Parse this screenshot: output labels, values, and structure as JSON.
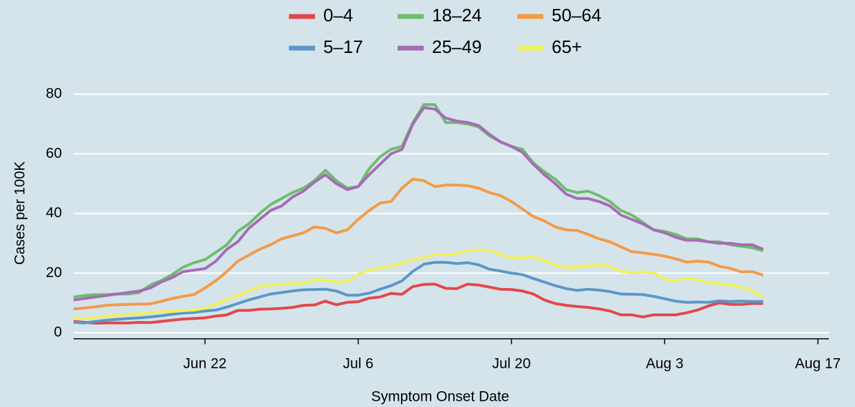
{
  "chart_data": {
    "type": "line",
    "x_label": "Symptom Onset Date",
    "y_label": "Cases per 100K",
    "legend": "top",
    "grid": true,
    "x": [
      "Jun 10",
      "Jun 11",
      "Jun 12",
      "Jun 13",
      "Jun 14",
      "Jun 15",
      "Jun 16",
      "Jun 17",
      "Jun 18",
      "Jun 19",
      "Jun 20",
      "Jun 21",
      "Jun 22",
      "Jun 23",
      "Jun 24",
      "Jun 25",
      "Jun 26",
      "Jun 27",
      "Jun 28",
      "Jun 29",
      "Jun 30",
      "Jul 1",
      "Jul 2",
      "Jul 3",
      "Jul 4",
      "Jul 5",
      "Jul 6",
      "Jul 7",
      "Jul 8",
      "Jul 9",
      "Jul 10",
      "Jul 11",
      "Jul 12",
      "Jul 13",
      "Jul 14",
      "Jul 15",
      "Jul 16",
      "Jul 17",
      "Jul 18",
      "Jul 19",
      "Jul 20",
      "Jul 21",
      "Jul 22",
      "Jul 23",
      "Jul 24",
      "Jul 25",
      "Jul 26",
      "Jul 27",
      "Jul 28",
      "Jul 29",
      "Jul 30",
      "Jul 31",
      "Aug 1",
      "Aug 2",
      "Aug 3",
      "Aug 4",
      "Aug 5",
      "Aug 6",
      "Aug 7",
      "Aug 8",
      "Aug 9",
      "Aug 10",
      "Aug 11",
      "Aug 12"
    ],
    "xlim": [
      "Jun 10",
      "Aug 18"
    ],
    "xticks": [
      "Jun 22",
      "Jul 6",
      "Jul 20",
      "Aug 3",
      "Aug 17"
    ],
    "ylim": [
      -2,
      82
    ],
    "yticks": [
      0,
      20,
      40,
      60,
      80
    ],
    "series": [
      {
        "name": "0–4",
        "color": "#e2474c",
        "values": [
          3.8,
          3.5,
          3.2,
          3.3,
          3.3,
          3.3,
          3.5,
          3.4,
          3.8,
          4.2,
          4.6,
          4.8,
          5,
          5.6,
          6,
          7.5,
          7.5,
          7.9,
          8,
          8.2,
          8.5,
          9.2,
          9.3,
          10.6,
          9.4,
          10.2,
          10.4,
          11.6,
          12,
          13.2,
          12.9,
          15.5,
          16.2,
          16.3,
          14.9,
          14.8,
          16.3,
          16,
          15.3,
          14.6,
          14.5,
          14,
          13,
          11,
          9.8,
          9.2,
          8.8,
          8.5,
          8,
          7.3,
          6,
          6,
          5.3,
          6,
          6,
          6,
          6.7,
          7.6,
          9,
          10,
          9.5,
          9.5,
          9.8,
          9.8
        ]
      },
      {
        "name": "5–17",
        "color": "#5b97c8",
        "values": [
          3.5,
          3.3,
          3.8,
          4.2,
          4.5,
          4.8,
          5,
          5.3,
          5.7,
          6.2,
          6.6,
          6.8,
          7.3,
          7.6,
          8.6,
          9.8,
          11,
          12,
          13,
          13.5,
          14,
          14.4,
          14.5,
          14.6,
          14,
          12.6,
          12.6,
          13.3,
          14.6,
          15.8,
          17.4,
          20.6,
          23,
          23.6,
          23.6,
          23.2,
          23.5,
          22.8,
          21.3,
          20.7,
          20,
          19.5,
          18.2,
          17,
          15.8,
          14.8,
          14.2,
          14.6,
          14.3,
          13.8,
          13,
          12.9,
          12.8,
          12.2,
          11.4,
          10.6,
          10.2,
          10.3,
          10.2,
          10.7,
          10.5,
          10.6,
          10.5,
          10.5
        ]
      },
      {
        "name": "18–24",
        "color": "#6dbd6d",
        "values": [
          12,
          12.5,
          12.8,
          12.8,
          13,
          13,
          13.5,
          16,
          17.5,
          19.5,
          22,
          23.5,
          24.5,
          27,
          29.5,
          34,
          36.5,
          40,
          43,
          45,
          47,
          48.5,
          51,
          54.5,
          51,
          48.5,
          49,
          55,
          59,
          61.5,
          62.5,
          70.5,
          76.5,
          76.5,
          70.5,
          70.5,
          70,
          69,
          66,
          64,
          62.5,
          61.5,
          57,
          54,
          51.5,
          48,
          47,
          47.5,
          46,
          44,
          41,
          39.5,
          37,
          34.5,
          34,
          33,
          31.5,
          31.5,
          30.5,
          30.5,
          29.5,
          29,
          28.5,
          27.5
        ]
      },
      {
        "name": "25–49",
        "color": "#a56cb5",
        "values": [
          11,
          11.5,
          12,
          12.5,
          13,
          13.5,
          14,
          15,
          17,
          18.5,
          20.5,
          21,
          21.5,
          24,
          28,
          30.5,
          35,
          38,
          41,
          42.5,
          45.5,
          47.5,
          50.5,
          53,
          50,
          48,
          49,
          53,
          56.5,
          60,
          61.5,
          70,
          75.5,
          75,
          72,
          71,
          70.5,
          69.5,
          66.5,
          64,
          62.5,
          60.5,
          56.5,
          53,
          50,
          46.5,
          45,
          45,
          44,
          42.5,
          39.5,
          38,
          36.5,
          34.5,
          33.5,
          32,
          31,
          31,
          30.5,
          30,
          30,
          29.5,
          29.5,
          28
        ]
      },
      {
        "name": "50–64",
        "color": "#f49a45",
        "values": [
          8,
          8.3,
          8.7,
          9.2,
          9.4,
          9.5,
          9.6,
          9.7,
          10.5,
          11.5,
          12.2,
          12.8,
          15,
          17.5,
          20.5,
          24,
          26,
          28,
          29.5,
          31.5,
          32.5,
          33.5,
          35.5,
          35,
          33.5,
          34.5,
          38,
          41,
          43.5,
          44,
          48.5,
          51.5,
          51,
          49,
          49.5,
          49.5,
          49.3,
          48.5,
          47,
          46,
          44,
          41.5,
          39,
          37.5,
          35.5,
          34.5,
          34.3,
          33,
          31.5,
          30.5,
          28.8,
          27.2,
          26.8,
          26.3,
          25.7,
          24.8,
          23.7,
          24,
          23.7,
          22.3,
          21.6,
          20.4,
          20.5,
          19.3
        ]
      },
      {
        "name": "65+",
        "color": "#f0f05c",
        "values": [
          5,
          4.7,
          5.3,
          5.6,
          5.9,
          6.1,
          6.4,
          6.8,
          7,
          7.1,
          7.4,
          7.6,
          8.2,
          9.6,
          11,
          12.5,
          14,
          15.5,
          16,
          16.3,
          16.6,
          16.6,
          17.8,
          17.7,
          17,
          17.2,
          19.6,
          21,
          21.8,
          22.2,
          23.5,
          24.5,
          25,
          26.3,
          26.2,
          26.5,
          27.5,
          27.8,
          27.6,
          26.2,
          25.2,
          25,
          25.6,
          24.2,
          22.8,
          21.8,
          22,
          22.5,
          22.8,
          22.3,
          20.6,
          20.2,
          20.4,
          20.2,
          18,
          17.3,
          18.2,
          17.9,
          16.8,
          16.5,
          16,
          15.3,
          14.1,
          12
        ]
      }
    ]
  }
}
